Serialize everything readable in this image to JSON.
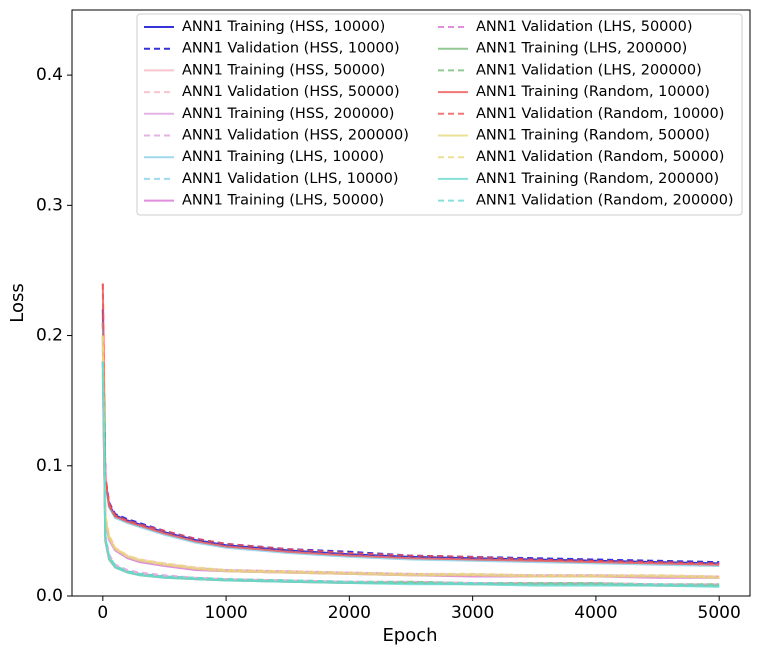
{
  "chart_data": {
    "type": "line",
    "xlabel": "Epoch",
    "ylabel": "Loss",
    "xlim": [
      -250,
      5250
    ],
    "ylim": [
      0,
      0.45
    ],
    "xticks": [
      0,
      1000,
      2000,
      3000,
      4000,
      5000
    ],
    "yticks": [
      {
        "value": 0,
        "label": "0.0"
      },
      0.1,
      0.2,
      0.3,
      0.4
    ],
    "x": [
      0,
      20,
      50,
      100,
      200,
      300,
      500,
      750,
      1000,
      1500,
      2000,
      2500,
      3000,
      3500,
      4000,
      4500,
      5000
    ],
    "series": [
      {
        "name": "ANN1 Training (HSS, 10000)",
        "color": "#0000cc",
        "dash": false,
        "values": [
          0.22,
          0.09,
          0.07,
          0.062,
          0.058,
          0.055,
          0.049,
          0.043,
          0.039,
          0.035,
          0.032,
          0.03,
          0.029,
          0.028,
          0.027,
          0.026,
          0.025
        ]
      },
      {
        "name": "ANN1 Validation (HSS, 10000)",
        "color": "#0000cc",
        "dash": true,
        "values": [
          0.21,
          0.092,
          0.072,
          0.063,
          0.059,
          0.056,
          0.05,
          0.044,
          0.04,
          0.036,
          0.034,
          0.031,
          0.03,
          0.029,
          0.028,
          0.027,
          0.026
        ]
      },
      {
        "name": "ANN1 Training (HSS, 50000)",
        "color": "#f4b6c2",
        "dash": false,
        "values": [
          0.19,
          0.06,
          0.045,
          0.036,
          0.03,
          0.027,
          0.024,
          0.021,
          0.019,
          0.018,
          0.017,
          0.016,
          0.016,
          0.015,
          0.015,
          0.015,
          0.014
        ]
      },
      {
        "name": "ANN1 Validation (HSS, 50000)",
        "color": "#f4b6c2",
        "dash": true,
        "values": [
          0.19,
          0.062,
          0.047,
          0.037,
          0.031,
          0.028,
          0.025,
          0.022,
          0.02,
          0.019,
          0.018,
          0.017,
          0.017,
          0.016,
          0.016,
          0.016,
          0.015
        ]
      },
      {
        "name": "ANN1 Training (HSS, 200000)",
        "color": "#dda0dd",
        "dash": false,
        "values": [
          0.17,
          0.045,
          0.03,
          0.023,
          0.019,
          0.017,
          0.015,
          0.013,
          0.012,
          0.011,
          0.01,
          0.01,
          0.009,
          0.009,
          0.009,
          0.008,
          0.008
        ]
      },
      {
        "name": "ANN1 Validation (HSS, 200000)",
        "color": "#dda0dd",
        "dash": true,
        "values": [
          0.17,
          0.047,
          0.032,
          0.024,
          0.02,
          0.018,
          0.016,
          0.014,
          0.013,
          0.012,
          0.011,
          0.011,
          0.01,
          0.01,
          0.01,
          0.009,
          0.009
        ]
      },
      {
        "name": "ANN1 Training (LHS, 10000)",
        "color": "#87ceeb",
        "dash": false,
        "values": [
          0.21,
          0.088,
          0.068,
          0.06,
          0.056,
          0.053,
          0.047,
          0.041,
          0.037,
          0.033,
          0.03,
          0.028,
          0.027,
          0.026,
          0.025,
          0.024,
          0.023
        ]
      },
      {
        "name": "ANN1 Validation (LHS, 10000)",
        "color": "#87ceeb",
        "dash": true,
        "values": [
          0.21,
          0.09,
          0.07,
          0.061,
          0.057,
          0.054,
          0.048,
          0.042,
          0.038,
          0.034,
          0.031,
          0.029,
          0.028,
          0.027,
          0.026,
          0.025,
          0.024
        ]
      },
      {
        "name": "ANN1 Training (LHS, 50000)",
        "color": "#da70d6",
        "dash": false,
        "values": [
          0.2,
          0.058,
          0.043,
          0.035,
          0.029,
          0.026,
          0.023,
          0.02,
          0.019,
          0.018,
          0.017,
          0.016,
          0.015,
          0.015,
          0.015,
          0.014,
          0.014
        ]
      },
      {
        "name": "ANN1 Validation (LHS, 50000)",
        "color": "#da70d6",
        "dash": true,
        "values": [
          0.2,
          0.06,
          0.045,
          0.036,
          0.03,
          0.027,
          0.024,
          0.021,
          0.02,
          0.019,
          0.018,
          0.017,
          0.016,
          0.016,
          0.016,
          0.015,
          0.015
        ]
      },
      {
        "name": "ANN1 Training (LHS, 200000)",
        "color": "#77bb77",
        "dash": false,
        "values": [
          0.18,
          0.042,
          0.028,
          0.022,
          0.018,
          0.016,
          0.014,
          0.013,
          0.012,
          0.011,
          0.01,
          0.01,
          0.009,
          0.009,
          0.009,
          0.008,
          0.008
        ]
      },
      {
        "name": "ANN1 Validation (LHS, 200000)",
        "color": "#77bb77",
        "dash": true,
        "values": [
          0.18,
          0.044,
          0.03,
          0.023,
          0.019,
          0.017,
          0.015,
          0.014,
          0.013,
          0.012,
          0.011,
          0.011,
          0.01,
          0.01,
          0.01,
          0.009,
          0.009
        ]
      },
      {
        "name": "ANN1 Training (Random, 10000)",
        "color": "#ee5555",
        "dash": false,
        "values": [
          0.24,
          0.09,
          0.069,
          0.061,
          0.057,
          0.054,
          0.048,
          0.042,
          0.038,
          0.034,
          0.031,
          0.029,
          0.028,
          0.027,
          0.026,
          0.025,
          0.024
        ]
      },
      {
        "name": "ANN1 Validation (Random, 10000)",
        "color": "#ee5555",
        "dash": true,
        "values": [
          0.24,
          0.092,
          0.071,
          0.062,
          0.058,
          0.055,
          0.05,
          0.044,
          0.04,
          0.036,
          0.033,
          0.031,
          0.03,
          0.028,
          0.027,
          0.026,
          0.025
        ]
      },
      {
        "name": "ANN1 Training (Random, 50000)",
        "color": "#e6d97a",
        "dash": false,
        "values": [
          0.2,
          0.059,
          0.044,
          0.036,
          0.03,
          0.027,
          0.024,
          0.021,
          0.019,
          0.018,
          0.017,
          0.016,
          0.016,
          0.015,
          0.015,
          0.015,
          0.014
        ]
      },
      {
        "name": "ANN1 Validation (Random, 50000)",
        "color": "#e6d97a",
        "dash": true,
        "values": [
          0.2,
          0.061,
          0.046,
          0.037,
          0.031,
          0.028,
          0.025,
          0.022,
          0.02,
          0.019,
          0.018,
          0.017,
          0.017,
          0.016,
          0.016,
          0.016,
          0.015
        ]
      },
      {
        "name": "ANN1 Training (Random, 200000)",
        "color": "#66d9d0",
        "dash": false,
        "values": [
          0.18,
          0.043,
          0.029,
          0.022,
          0.018,
          0.016,
          0.014,
          0.013,
          0.012,
          0.011,
          0.01,
          0.009,
          0.009,
          0.008,
          0.008,
          0.008,
          0.007
        ]
      },
      {
        "name": "ANN1 Validation (Random, 200000)",
        "color": "#66d9d0",
        "dash": true,
        "values": [
          0.18,
          0.045,
          0.031,
          0.023,
          0.019,
          0.017,
          0.015,
          0.014,
          0.013,
          0.012,
          0.011,
          0.01,
          0.01,
          0.009,
          0.009,
          0.009,
          0.008
        ]
      }
    ]
  }
}
